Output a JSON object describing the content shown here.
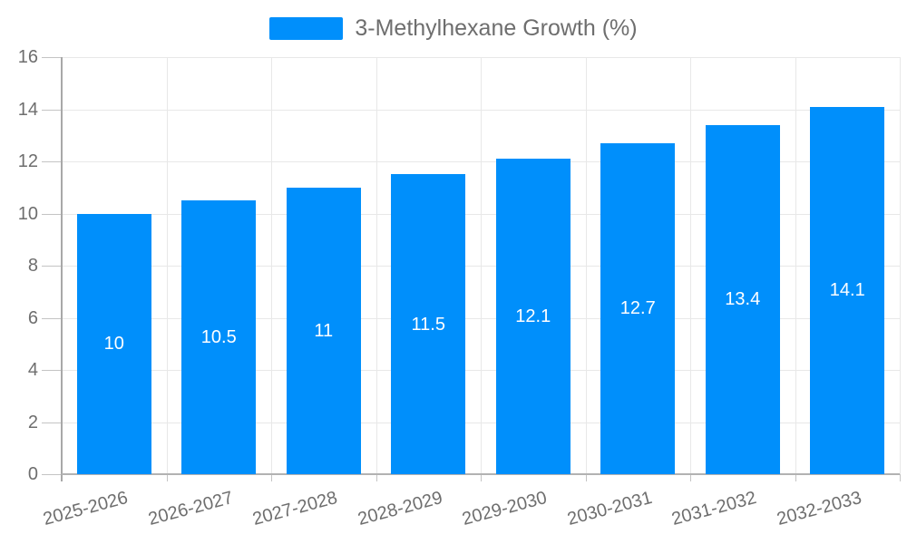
{
  "legend": {
    "label": "3-Methylhexane Growth (%)"
  },
  "chart_data": {
    "type": "bar",
    "title": "3-Methylhexane Growth (%)",
    "series_name": "3-Methylhexane Growth (%)",
    "categories": [
      "2025-2026",
      "2026-2027",
      "2027-2028",
      "2028-2029",
      "2029-2030",
      "2030-2031",
      "2031-2032",
      "2032-2033"
    ],
    "values": [
      10,
      10.5,
      11,
      11.5,
      12.1,
      12.7,
      13.4,
      14.1
    ],
    "data_labels": [
      "10",
      "10.5",
      "11",
      "11.5",
      "12.1",
      "12.7",
      "13.4",
      "14.1"
    ],
    "xlabel": "",
    "ylabel": "",
    "ylim": [
      0,
      16
    ],
    "yticks": [
      0,
      2,
      4,
      6,
      8,
      10,
      12,
      14,
      16
    ],
    "grid": true,
    "legend_position": "top",
    "bar_color": "#008FFB",
    "data_label_color": "#ffffff",
    "axis_label_color": "#6e6e6e",
    "grid_color": "#e8e8e8",
    "axis_line_color": "#a8a8a8",
    "x_label_rotation": -15
  }
}
